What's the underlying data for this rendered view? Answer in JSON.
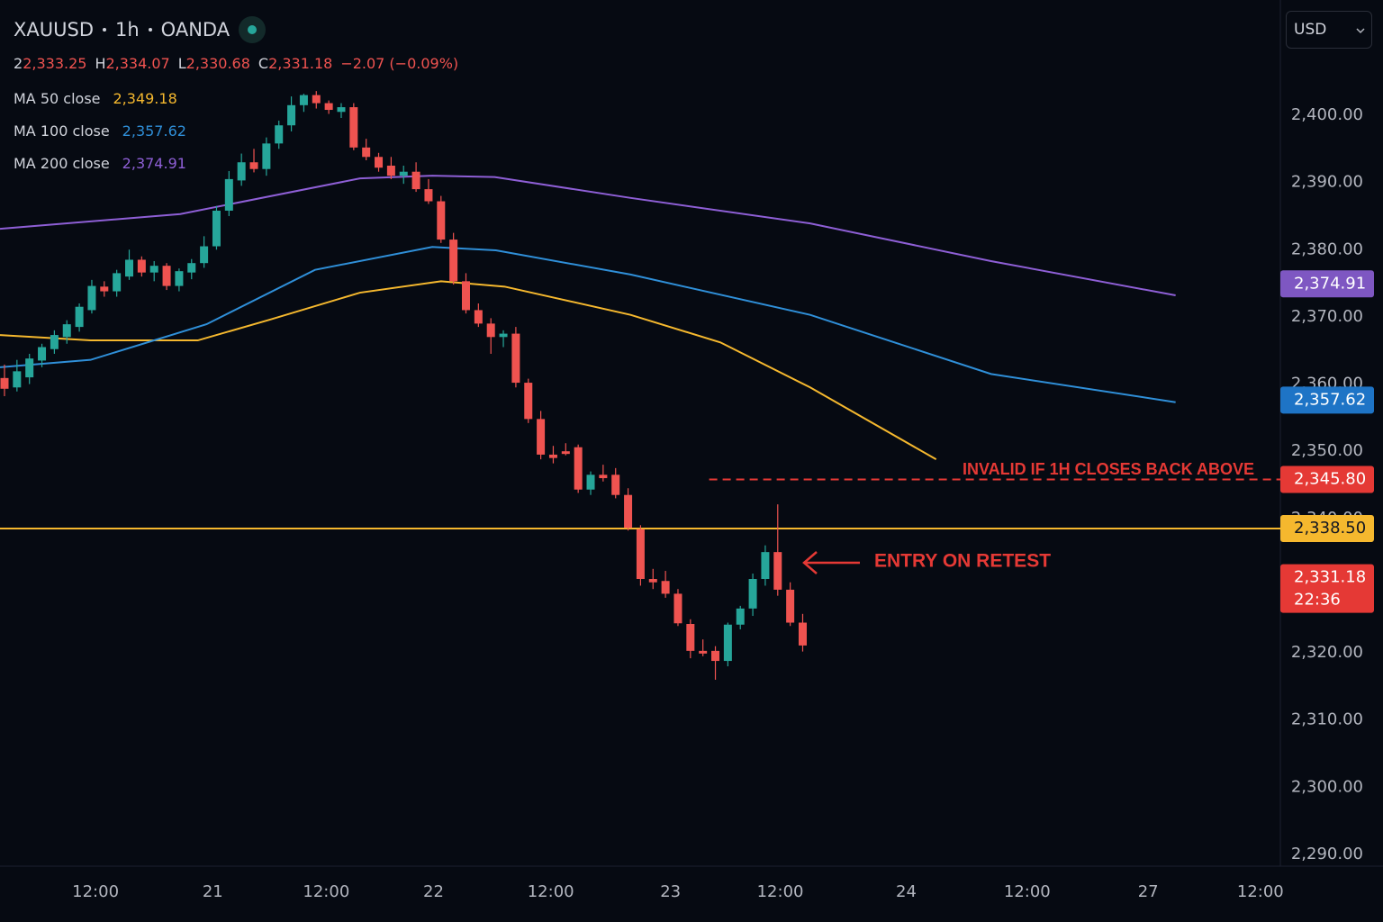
{
  "header": {
    "symbol": "XAUUSD",
    "interval": "1h",
    "source": "OANDA",
    "ohlc": [
      {
        "key": "2",
        "value": "2,333.25"
      },
      {
        "key": "H",
        "value": "2,334.07"
      },
      {
        "key": "L",
        "value": "2,330.68"
      },
      {
        "key": "C",
        "value": "2,331.18"
      }
    ],
    "change": "−2.07 (−0.09%)",
    "currency": "USD"
  },
  "chart_data": {
    "type": "candlestick",
    "up_color": "#26a69a",
    "down_color": "#ef5350",
    "grid": false,
    "x": [
      0,
      1,
      2,
      3,
      4,
      5,
      6,
      7,
      8,
      9,
      10,
      11,
      12,
      13,
      14,
      15,
      16,
      17,
      18,
      19,
      20,
      21,
      22,
      23,
      24,
      25,
      26,
      27,
      28,
      29,
      30,
      31,
      32,
      33,
      34,
      35,
      36,
      37,
      38,
      39,
      40,
      41,
      42,
      43,
      44,
      45,
      46,
      47,
      48,
      49,
      50,
      51,
      52,
      53,
      54,
      55,
      56,
      57,
      58,
      59,
      60,
      61,
      62,
      63,
      64
    ],
    "open": [
      2360.9,
      2359.5,
      2361.0,
      2363.5,
      2365.2,
      2367.0,
      2368.5,
      2371.0,
      2374.5,
      2373.8,
      2376.0,
      2378.5,
      2376.6,
      2377.6,
      2374.6,
      2376.6,
      2378.0,
      2380.5,
      2385.8,
      2390.3,
      2393.0,
      2392.0,
      2395.8,
      2398.5,
      2401.5,
      2403.0,
      2401.8,
      2400.5,
      2401.2,
      2395.2,
      2393.8,
      2392.5,
      2391.0,
      2391.6,
      2389.0,
      2387.2,
      2381.5,
      2375.3,
      2371.0,
      2369.0,
      2367.0,
      2367.5,
      2360.2,
      2354.8,
      2349.5,
      2350.0,
      2350.6,
      2344.3,
      2346.5,
      2346.5,
      2343.5,
      2338.4,
      2331.0,
      2330.7,
      2328.8,
      2324.3,
      2320.3,
      2320.3,
      2318.8,
      2324.2,
      2326.6,
      2331.0,
      2335.0,
      2329.4,
      2324.5
    ],
    "high": [
      2362.9,
      2363.6,
      2364.5,
      2366.0,
      2368.0,
      2369.5,
      2372.0,
      2375.5,
      2375.3,
      2377.0,
      2380.0,
      2379.0,
      2378.3,
      2378.0,
      2377.2,
      2378.6,
      2382.0,
      2386.5,
      2391.7,
      2394.3,
      2395.0,
      2396.7,
      2399.2,
      2402.8,
      2403.2,
      2403.6,
      2402.2,
      2401.8,
      2401.8,
      2396.5,
      2394.4,
      2393.8,
      2392.5,
      2393.0,
      2390.5,
      2388.0,
      2382.5,
      2376.5,
      2372.0,
      2369.8,
      2368.0,
      2368.5,
      2360.8,
      2356.0,
      2350.8,
      2351.2,
      2351.0,
      2347.0,
      2348.0,
      2347.5,
      2344.5,
      2339.0,
      2332.5,
      2332.2,
      2329.5,
      2325.0,
      2322.0,
      2321.0,
      2324.5,
      2327.0,
      2331.8,
      2336.0,
      2342.1,
      2330.5,
      2325.8
    ],
    "low": [
      2358.2,
      2358.9,
      2360.0,
      2362.5,
      2364.5,
      2366.0,
      2367.8,
      2370.5,
      2373.0,
      2373.0,
      2375.5,
      2376.0,
      2375.3,
      2374.0,
      2373.8,
      2375.6,
      2377.3,
      2380.0,
      2385.0,
      2389.5,
      2391.5,
      2391.0,
      2395.0,
      2397.6,
      2400.5,
      2401.0,
      2400.2,
      2399.6,
      2394.8,
      2393.3,
      2391.6,
      2390.5,
      2389.8,
      2388.6,
      2386.8,
      2381.0,
      2374.8,
      2370.5,
      2368.5,
      2364.5,
      2365.5,
      2359.5,
      2354.2,
      2348.8,
      2348.2,
      2349.4,
      2343.8,
      2343.5,
      2345.5,
      2343.0,
      2338.2,
      2330.0,
      2329.5,
      2328.2,
      2324.0,
      2319.2,
      2319.5,
      2316.0,
      2318.0,
      2323.5,
      2325.5,
      2330.0,
      2328.5,
      2324.0,
      2320.2
    ],
    "close": [
      2359.3,
      2361.9,
      2363.8,
      2365.5,
      2367.3,
      2368.9,
      2371.5,
      2374.6,
      2373.8,
      2376.5,
      2378.5,
      2376.6,
      2377.6,
      2374.6,
      2376.8,
      2378.0,
      2380.5,
      2385.8,
      2390.5,
      2393.0,
      2392.0,
      2395.8,
      2398.5,
      2401.5,
      2403.0,
      2401.8,
      2400.8,
      2401.2,
      2395.2,
      2393.8,
      2392.2,
      2391.0,
      2391.6,
      2389.0,
      2387.2,
      2381.5,
      2375.3,
      2371.0,
      2369.0,
      2367.0,
      2367.5,
      2360.2,
      2354.8,
      2349.5,
      2349.0,
      2349.6,
      2344.3,
      2346.5,
      2346.0,
      2343.5,
      2338.6,
      2331.0,
      2330.5,
      2328.8,
      2324.4,
      2320.3,
      2319.9,
      2318.8,
      2324.2,
      2326.6,
      2331.0,
      2335.0,
      2329.4,
      2324.5,
      2321.1
    ],
    "xlim": [
      -0.36,
      102.3
    ],
    "xticks": [
      {
        "value": 7.3,
        "label": "12:00"
      },
      {
        "value": 16.7,
        "label": "21"
      },
      {
        "value": 25.8,
        "label": "12:00"
      },
      {
        "value": 34.4,
        "label": "22"
      },
      {
        "value": 43.8,
        "label": "12:00"
      },
      {
        "value": 53.4,
        "label": "23"
      },
      {
        "value": 62.2,
        "label": "12:00"
      },
      {
        "value": 72.3,
        "label": "24"
      },
      {
        "value": 82.0,
        "label": "12:00"
      },
      {
        "value": 91.7,
        "label": "27"
      },
      {
        "value": 100.7,
        "label": "12:00"
      }
    ],
    "ylim": [
      2288.26,
      2417.15
    ],
    "yticks": [
      {
        "value": 2290,
        "label": "2,290.00"
      },
      {
        "value": 2300,
        "label": "2,300.00"
      },
      {
        "value": 2310,
        "label": "2,310.00"
      },
      {
        "value": 2320,
        "label": "2,320.00"
      },
      {
        "value": 2330,
        "label": "2,330.00"
      },
      {
        "value": 2340,
        "label": "2,340.00"
      },
      {
        "value": 2350,
        "label": "2,350.00"
      },
      {
        "value": 2360,
        "label": "2,360.00"
      },
      {
        "value": 2370,
        "label": "2,370.00"
      },
      {
        "value": 2380,
        "label": "2,380.00"
      },
      {
        "value": 2390,
        "label": "2,390.00"
      },
      {
        "value": 2400,
        "label": "2,400.00"
      }
    ],
    "lines": [
      {
        "name": "MA 50 close",
        "color": "#f5b82e",
        "legend_value": {
          "value": 2349.18,
          "label": "2,349.18"
        },
        "x": [
          -0.36,
          6.9,
          15.5,
          21.3,
          28.5,
          35.0,
          40.1,
          50.2,
          57.4,
          64.6,
          74.7
        ],
        "values": [
          2367.3,
          2366.5,
          2366.5,
          2369.6,
          2373.6,
          2375.3,
          2374.5,
          2370.3,
          2366.2,
          2359.5,
          2348.8
        ]
      },
      {
        "name": "MA 100 close",
        "color": "#2f8fd8",
        "legend_value": {
          "value": 2357.62,
          "label": "2,357.62"
        },
        "x": [
          -0.36,
          6.9,
          16.2,
          24.9,
          34.3,
          39.4,
          50.2,
          64.6,
          79.1,
          93.9
        ],
        "values": [
          2362.5,
          2363.6,
          2368.9,
          2377.0,
          2380.4,
          2379.9,
          2376.3,
          2370.3,
          2361.5,
          2357.3
        ]
      },
      {
        "name": "MA 200 close",
        "color": "#8e5fd6",
        "legend_value": {
          "value": 2374.91,
          "label": "2,374.91"
        },
        "x": [
          -0.36,
          14.1,
          28.5,
          34.3,
          39.3,
          50.2,
          64.6,
          79.1,
          93.9
        ],
        "values": [
          2383.1,
          2385.3,
          2390.6,
          2391.0,
          2390.8,
          2387.7,
          2383.9,
          2378.3,
          2373.2
        ]
      }
    ],
    "levels": [
      {
        "value": 2338.5,
        "color": "#f5b82e",
        "style": "solid"
      },
      {
        "value": 2345.8,
        "color": "#e53935",
        "style": "dashed",
        "from_x": 56.5
      }
    ],
    "price_tags": [
      {
        "value": 2374.91,
        "label": "2,374.91",
        "color": "#7e57c2"
      },
      {
        "value": 2357.62,
        "label": "2,357.62",
        "color": "#1e74c6"
      },
      {
        "value": 2345.8,
        "label": "2,345.80",
        "color": "#e53935"
      },
      {
        "value": 2338.5,
        "label": "2,338.50",
        "color": "#f5b82e"
      },
      {
        "value": 2331.18,
        "label": "2,331.18",
        "color": "#e53935",
        "countdown": "22:36"
      }
    ],
    "annotations": [
      {
        "text": "INVALID IF 1H CLOSES BACK ABOVE"
      },
      {
        "text": "ENTRY ON RETEST"
      }
    ]
  }
}
